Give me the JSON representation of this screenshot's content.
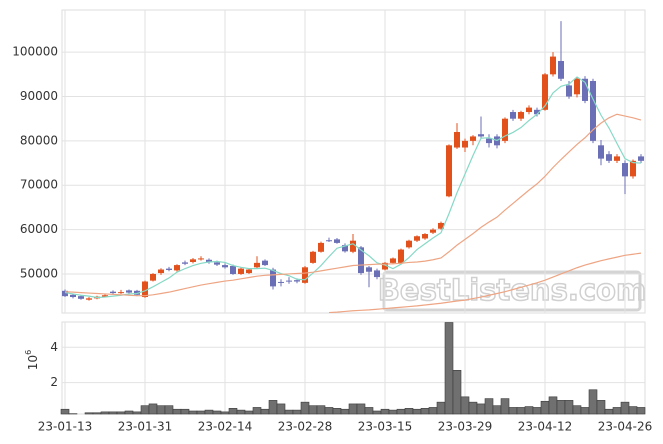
{
  "chart_data": {
    "type": "candlestick",
    "categories": [
      "23-01-13",
      null,
      null,
      null,
      null,
      null,
      null,
      null,
      null,
      null,
      "23-01-31",
      null,
      null,
      null,
      null,
      null,
      null,
      null,
      null,
      null,
      "23-02-14",
      null,
      null,
      null,
      null,
      null,
      null,
      null,
      null,
      null,
      "23-02-28",
      null,
      null,
      null,
      null,
      null,
      null,
      null,
      null,
      null,
      "23-03-15",
      null,
      null,
      null,
      null,
      null,
      null,
      null,
      null,
      null,
      "23-03-29",
      null,
      null,
      null,
      null,
      null,
      null,
      null,
      null,
      null,
      "23-04-12",
      null,
      null,
      null,
      null,
      null,
      null,
      null,
      null,
      null,
      "23-04-26",
      null,
      null
    ],
    "open": [
      46200,
      45300,
      45000,
      44200,
      44500,
      44900,
      46000,
      45800,
      46300,
      46200,
      44800,
      48500,
      50200,
      51200,
      50800,
      52600,
      52700,
      53300,
      53200,
      52600,
      52000,
      51800,
      50000,
      50200,
      51500,
      53000,
      51000,
      48200,
      48500,
      48600,
      48000,
      52500,
      55000,
      57600,
      57800,
      56500,
      55000,
      56000,
      51500,
      50800,
      51000,
      52500,
      52500,
      56000,
      57500,
      58000,
      59300,
      60200,
      67500,
      78500,
      78500,
      80000,
      81500,
      80500,
      81000,
      80000,
      86500,
      85000,
      86500,
      87000,
      87000,
      95000,
      98000,
      92500,
      90500,
      94000,
      93500,
      79000,
      77000,
      75500,
      75000,
      72000,
      76500
    ],
    "high": [
      46500,
      45500,
      45200,
      44800,
      45100,
      45400,
      46300,
      46400,
      46500,
      46400,
      48500,
      50200,
      51300,
      51600,
      52200,
      53000,
      53600,
      54000,
      53500,
      53000,
      52400,
      52100,
      51500,
      51200,
      54000,
      53300,
      51400,
      48800,
      49300,
      49000,
      51800,
      55200,
      57300,
      58200,
      58100,
      56900,
      59000,
      56300,
      51800,
      51200,
      52700,
      53700,
      55700,
      57700,
      58700,
      59200,
      60300,
      61800,
      79200,
      84000,
      80500,
      81300,
      85500,
      81500,
      81500,
      85300,
      87000,
      86800,
      88000,
      87500,
      95300,
      100000,
      107000,
      93500,
      94300,
      94600,
      94000,
      80200,
      77700,
      77000,
      75600,
      75800,
      77000
    ],
    "low": [
      44800,
      44500,
      44200,
      44000,
      44300,
      44700,
      45400,
      45500,
      45600,
      45000,
      44600,
      48300,
      49800,
      50600,
      50500,
      52000,
      52400,
      53000,
      52300,
      51800,
      51200,
      49800,
      49800,
      50000,
      51200,
      51800,
      46500,
      47200,
      47800,
      47900,
      47800,
      52300,
      54800,
      57200,
      56800,
      54800,
      54700,
      49800,
      47000,
      48800,
      50800,
      52200,
      52300,
      55700,
      57200,
      57700,
      59000,
      60000,
      67300,
      78200,
      77500,
      79000,
      80500,
      78500,
      78300,
      79500,
      84500,
      84500,
      86000,
      85500,
      86800,
      94500,
      93500,
      89500,
      89800,
      88500,
      79500,
      74500,
      75000,
      75000,
      68000,
      71500,
      75000
    ],
    "close": [
      45000,
      44800,
      44400,
      44500,
      44900,
      45200,
      45700,
      45900,
      45800,
      45300,
      48300,
      50000,
      51000,
      50900,
      52000,
      52300,
      53300,
      53500,
      52600,
      52100,
      51500,
      50000,
      51200,
      51000,
      52500,
      52000,
      47200,
      48000,
      48400,
      48300,
      51500,
      55000,
      57000,
      57400,
      57000,
      55100,
      57500,
      50200,
      50500,
      49300,
      52500,
      53500,
      55500,
      57500,
      58500,
      59000,
      60000,
      61500,
      79000,
      82000,
      80000,
      81000,
      81000,
      79500,
      79000,
      85000,
      85000,
      86500,
      87500,
      86000,
      95000,
      99000,
      94000,
      90000,
      94000,
      89000,
      80000,
      76000,
      75500,
      76500,
      72000,
      75500,
      75500
    ],
    "up_color": "#e2501c",
    "down_color": "#6a6fb6",
    "ylim": [
      41200,
      109500
    ],
    "yticks": [
      50000,
      60000,
      70000,
      80000,
      90000,
      100000
    ],
    "grid": true,
    "moving_averages": [
      {
        "color": "#86d9c6",
        "values": [
          45800,
          45500,
          45200,
          45000,
          44700,
          44800,
          45000,
          45200,
          45500,
          45600,
          46200,
          47100,
          48100,
          49100,
          50400,
          51200,
          51900,
          52400,
          52700,
          52800,
          52600,
          51900,
          51500,
          51200,
          51200,
          51300,
          50800,
          50100,
          49600,
          48800,
          48700,
          50200,
          51900,
          53900,
          55800,
          56300,
          56800,
          55400,
          54100,
          52500,
          52000,
          51200,
          52200,
          53700,
          55500,
          56800,
          58100,
          59300,
          63600,
          68300,
          72500,
          76700,
          80600,
          80700,
          80100,
          81100,
          81900,
          83000,
          84600,
          86000,
          87900,
          90800,
          92300,
          92800,
          94400,
          93200,
          89400,
          85800,
          82900,
          79400,
          76000,
          75100,
          75000
        ]
      },
      {
        "color": "#eea584",
        "values": [
          46000,
          45900,
          45800,
          45700,
          45600,
          45500,
          45400,
          45300,
          45200,
          45100,
          45100,
          45300,
          45600,
          45900,
          46300,
          46700,
          47100,
          47500,
          47800,
          48100,
          48400,
          48600,
          48900,
          49200,
          49500,
          49700,
          49800,
          49900,
          50000,
          50100,
          50200,
          50400,
          50700,
          51000,
          51300,
          51600,
          51900,
          52000,
          52100,
          52200,
          52200,
          52300,
          52400,
          52600,
          52700,
          52900,
          53200,
          53600,
          55000,
          56500,
          57800,
          59100,
          60500,
          61700,
          62800,
          64400,
          65900,
          67400,
          68900,
          70300,
          72000,
          74000,
          75800,
          77500,
          79200,
          80700,
          82500,
          84000,
          85200,
          86000,
          85600,
          85200,
          84700
        ]
      },
      {
        "color": "#eea584",
        "values": [
          null,
          null,
          null,
          null,
          null,
          null,
          null,
          null,
          null,
          null,
          null,
          null,
          null,
          null,
          null,
          null,
          null,
          null,
          null,
          null,
          null,
          null,
          null,
          null,
          null,
          null,
          null,
          null,
          null,
          null,
          null,
          null,
          null,
          41300,
          41400,
          41550,
          41700,
          41800,
          41900,
          42050,
          42200,
          42350,
          42500,
          42650,
          42800,
          43000,
          43200,
          43400,
          43650,
          43900,
          44100,
          44450,
          44800,
          45200,
          45600,
          46000,
          46500,
          47000,
          47500,
          48000,
          48600,
          49300,
          50000,
          50700,
          51400,
          52000,
          52500,
          53000,
          53400,
          53800,
          54200,
          54450,
          54700
        ]
      }
    ],
    "volume": {
      "color": "#707070",
      "values": [
        0.5,
        0.25,
        0.2,
        0.3,
        0.3,
        0.35,
        0.35,
        0.35,
        0.4,
        0.35,
        0.7,
        0.8,
        0.7,
        0.7,
        0.5,
        0.5,
        0.4,
        0.4,
        0.45,
        0.4,
        0.35,
        0.55,
        0.45,
        0.4,
        0.6,
        0.5,
        1.0,
        0.8,
        0.45,
        0.45,
        0.9,
        0.7,
        0.7,
        0.6,
        0.55,
        0.5,
        0.8,
        0.8,
        0.6,
        0.4,
        0.5,
        0.45,
        0.5,
        0.55,
        0.5,
        0.55,
        0.6,
        0.9,
        5.4,
        2.7,
        1.2,
        0.9,
        0.8,
        1.1,
        0.7,
        1.1,
        0.6,
        0.6,
        0.65,
        0.6,
        0.95,
        1.2,
        1.0,
        1.0,
        0.7,
        0.6,
        1.6,
        1.0,
        0.5,
        0.6,
        0.9,
        0.65,
        0.6
      ],
      "ylim": [
        0.23,
        5.43
      ],
      "yticks": [
        2,
        4
      ],
      "scale_label": {
        "base": "10",
        "exponent": "6"
      }
    },
    "watermark": "BestListens.com"
  }
}
